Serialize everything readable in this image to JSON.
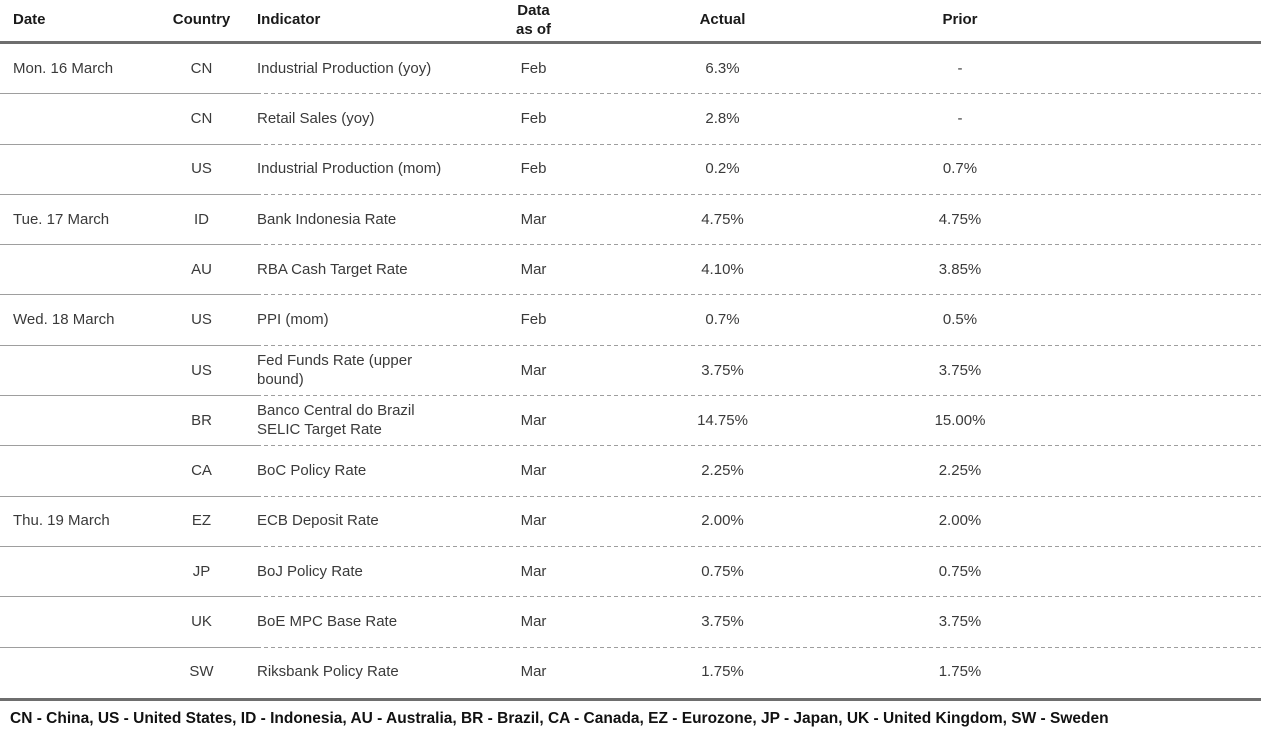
{
  "table": {
    "header": {
      "date": "Date",
      "country": "Country",
      "indicator": "Indicator",
      "data_as_of": "Data\nas of",
      "actual": "Actual",
      "prior": "Prior"
    },
    "rows": [
      {
        "date": "Mon. 16 March",
        "country": "CN",
        "indicator": "Industrial Production (yoy)",
        "data_as_of": "Feb",
        "actual": "6.3%",
        "prior": "-"
      },
      {
        "date": "",
        "country": "CN",
        "indicator": "Retail Sales (yoy)",
        "data_as_of": "Feb",
        "actual": "2.8%",
        "prior": "-"
      },
      {
        "date": "",
        "country": "US",
        "indicator": "Industrial Production (mom)",
        "data_as_of": "Feb",
        "actual": "0.2%",
        "prior": "0.7%"
      },
      {
        "date": "Tue. 17 March",
        "country": "ID",
        "indicator": "Bank Indonesia Rate",
        "data_as_of": "Mar",
        "actual": "4.75%",
        "prior": "4.75%"
      },
      {
        "date": "",
        "country": "AU",
        "indicator": "RBA Cash Target Rate",
        "data_as_of": "Mar",
        "actual": "4.10%",
        "prior": "3.85%"
      },
      {
        "date": "Wed. 18 March",
        "country": "US",
        "indicator": "PPI (mom)",
        "data_as_of": "Feb",
        "actual": "0.7%",
        "prior": "0.5%"
      },
      {
        "date": "",
        "country": "US",
        "indicator": "Fed Funds Rate (upper bound)",
        "data_as_of": "Mar",
        "actual": "3.75%",
        "prior": "3.75%"
      },
      {
        "date": "",
        "country": "BR",
        "indicator": "Banco Central do Brazil SELIC Target Rate",
        "data_as_of": "Mar",
        "actual": "14.75%",
        "prior": "15.00%"
      },
      {
        "date": "",
        "country": "CA",
        "indicator": "BoC Policy Rate",
        "data_as_of": "Mar",
        "actual": "2.25%",
        "prior": "2.25%"
      },
      {
        "date": "Thu. 19 March",
        "country": "EZ",
        "indicator": "ECB Deposit Rate",
        "data_as_of": "Mar",
        "actual": "2.00%",
        "prior": "2.00%"
      },
      {
        "date": "",
        "country": "JP",
        "indicator": "BoJ Policy Rate",
        "data_as_of": "Mar",
        "actual": "0.75%",
        "prior": "0.75%"
      },
      {
        "date": "",
        "country": "UK",
        "indicator": "BoE MPC Base Rate",
        "data_as_of": "Mar",
        "actual": "3.75%",
        "prior": "3.75%"
      },
      {
        "date": "",
        "country": "SW",
        "indicator": "Riksbank Policy Rate",
        "data_as_of": "Mar",
        "actual": "1.75%",
        "prior": "1.75%"
      }
    ]
  },
  "footer": {
    "legend": "CN - China, US - United States, ID - Indonesia, AU - Australia, BR - Brazil, CA - Canada, EZ - Eurozone, JP - Japan, UK - United Kingdom, SW - Sweden"
  },
  "colors": {
    "thick_rule": "#6e6e6e",
    "row_separator": "#9e9e9e",
    "header_text": "#1a1a1a",
    "body_text": "#3a3a3a"
  }
}
